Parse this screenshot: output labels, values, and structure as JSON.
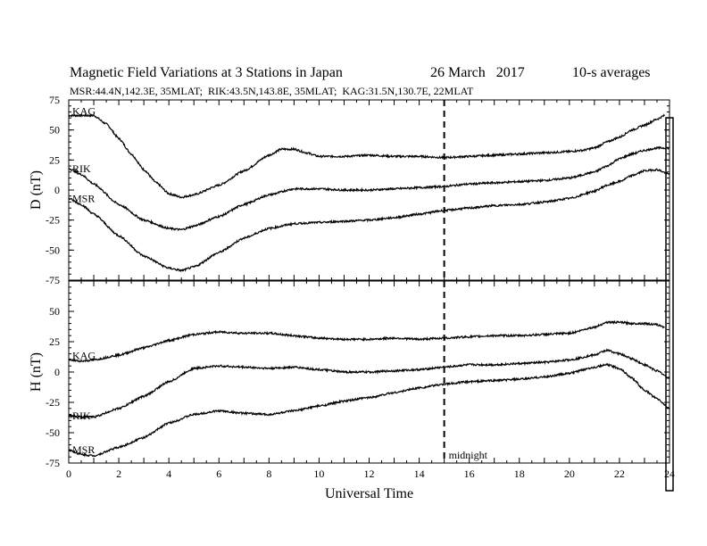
{
  "header": {
    "title": "Magnetic Field Variations at 3 Stations in Japan",
    "date": "26 March   2017",
    "averaging": "10-s averages",
    "stations": "MSR:44.4N,142.3E, 35MLAT;  RIK:43.5N,143.8E, 35MLAT;  KAG:31.5N,130.7E, 22MLAT"
  },
  "chart_data": [
    {
      "type": "line",
      "panel": "top",
      "ylabel": "D (nT)",
      "ylim": [
        -75,
        75
      ],
      "yticks": [
        75,
        50,
        25,
        0,
        -25,
        -50,
        -75
      ],
      "xlim": [
        0,
        24
      ],
      "series": [
        {
          "name": "KAG",
          "x": [
            0,
            1,
            1.5,
            2,
            2.5,
            3,
            3.5,
            4,
            4.5,
            5,
            6,
            7,
            8,
            8.5,
            9,
            9.5,
            10,
            11,
            12,
            13,
            14,
            15,
            16,
            17,
            18,
            19,
            20,
            20.5,
            21,
            21.5,
            22,
            22.5,
            23,
            23.5,
            23.8
          ],
          "y": [
            62,
            62,
            55,
            43,
            30,
            17,
            6,
            -3,
            -6,
            -4,
            4,
            16,
            29,
            34,
            34,
            31,
            28,
            28,
            29,
            28,
            28,
            27,
            28,
            29,
            30,
            31,
            32,
            33,
            35,
            40,
            44,
            50,
            54,
            59,
            62
          ]
        },
        {
          "name": "RIK",
          "x": [
            0,
            0.5,
            1,
            2,
            3,
            4,
            4.5,
            5,
            6,
            7,
            8,
            9,
            10,
            11,
            12,
            13,
            14,
            15,
            16,
            17,
            18,
            19,
            20,
            21,
            21.5,
            22,
            22.5,
            23,
            23.5,
            24
          ],
          "y": [
            18,
            13,
            5,
            -12,
            -25,
            -32,
            -33,
            -30,
            -22,
            -12,
            -4,
            1,
            1,
            0,
            0,
            1,
            2,
            3,
            5,
            6,
            7,
            8,
            10,
            15,
            20,
            26,
            30,
            33,
            35,
            35
          ]
        },
        {
          "name": "MSR",
          "x": [
            0,
            0.5,
            1,
            2,
            3,
            4,
            4.5,
            5,
            6,
            7,
            8,
            9,
            10,
            11,
            12,
            13,
            14,
            15,
            16,
            17,
            18,
            19,
            20,
            21,
            21.5,
            22,
            22.5,
            23,
            23.5,
            24
          ],
          "y": [
            -7,
            -12,
            -20,
            -38,
            -55,
            -65,
            -67,
            -64,
            -52,
            -40,
            -32,
            -28,
            -27,
            -26,
            -25,
            -23,
            -20,
            -17,
            -15,
            -13,
            -12,
            -10,
            -7,
            -1,
            4,
            7,
            12,
            16,
            17,
            13
          ]
        }
      ]
    },
    {
      "type": "line",
      "panel": "bottom",
      "ylabel": "H (nT)",
      "xlabel": "Universal Time",
      "ylim": [
        -75,
        75
      ],
      "yticks": [
        75,
        50,
        25,
        0,
        -25,
        -50,
        -75
      ],
      "xlim": [
        0,
        24
      ],
      "xticks": [
        0,
        2,
        4,
        6,
        8,
        10,
        12,
        14,
        16,
        18,
        20,
        22,
        24
      ],
      "series": [
        {
          "name": "KAG",
          "x": [
            0,
            0.5,
            1,
            2,
            3,
            4,
            5,
            6,
            7,
            8,
            9,
            10,
            11,
            12,
            13,
            14,
            15,
            16,
            17,
            18,
            19,
            20,
            21,
            21.5,
            22,
            22.5,
            23,
            23.5,
            23.8
          ],
          "y": [
            10,
            9,
            10,
            14,
            20,
            26,
            31,
            33,
            32,
            32,
            30,
            28,
            27,
            27,
            28,
            27,
            28,
            29,
            30,
            30,
            31,
            32,
            37,
            41,
            41,
            40,
            40,
            39,
            37
          ]
        },
        {
          "name": "RIK",
          "x": [
            0,
            0.5,
            1,
            2,
            3,
            4,
            5,
            6,
            7,
            8,
            9,
            10,
            11,
            12,
            13,
            14,
            15,
            16,
            17,
            18,
            19,
            20,
            21,
            21.5,
            22,
            22.5,
            23,
            23.5,
            24
          ],
          "y": [
            -36,
            -37,
            -37,
            -30,
            -20,
            -8,
            3,
            5,
            4,
            3,
            4,
            2,
            0,
            0,
            1,
            2,
            4,
            6,
            6,
            7,
            8,
            10,
            14,
            18,
            15,
            11,
            6,
            1,
            -5
          ]
        },
        {
          "name": "MSR",
          "x": [
            0,
            0.5,
            1,
            2,
            3,
            4,
            5,
            6,
            7,
            8,
            9,
            10,
            11,
            12,
            13,
            14,
            15,
            16,
            17,
            18,
            19,
            20,
            21,
            21.5,
            22,
            22.5,
            23,
            23.5,
            24
          ],
          "y": [
            -64,
            -68,
            -69,
            -62,
            -54,
            -42,
            -35,
            -32,
            -34,
            -35,
            -32,
            -28,
            -24,
            -21,
            -17,
            -13,
            -10,
            -8,
            -7,
            -6,
            -4,
            -1,
            4,
            6,
            3,
            -5,
            -15,
            -22,
            -30
          ]
        }
      ]
    }
  ],
  "annotations": {
    "midnight_label": "midnight",
    "midnight_ut": 15
  }
}
